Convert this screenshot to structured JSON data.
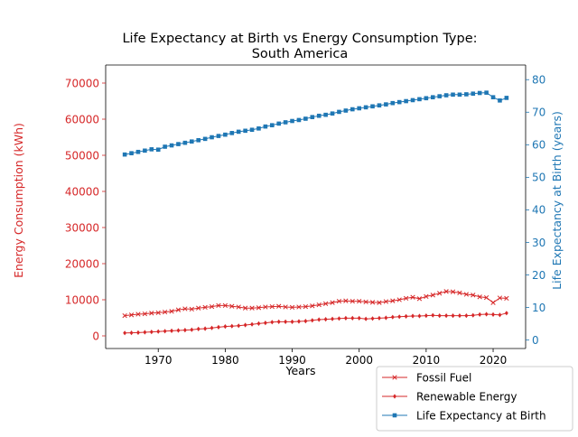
{
  "chart_data": {
    "type": "line",
    "title_line1": "Life Expectancy at Birth vs Energy Consumption Type:",
    "title_line2": "South America",
    "xlabel": "Years",
    "ylabel_left": "Energy Consumption (kWh)",
    "ylabel_right": "Life Expectancy at Birth (years)",
    "xlim": [
      1962.15,
      2024.85
    ],
    "ylim_left": [
      -3500,
      75000
    ],
    "ylim_right": [
      -2.6,
      84.5
    ],
    "x_ticks": [
      1970,
      1980,
      1990,
      2000,
      2010,
      2020
    ],
    "y_ticks_left": [
      0,
      10000,
      20000,
      30000,
      40000,
      50000,
      60000,
      70000
    ],
    "y_ticks_right": [
      0,
      10,
      20,
      30,
      40,
      50,
      60,
      70,
      80
    ],
    "legend_position": "bottom-right outside",
    "grid": false,
    "x": [
      1965,
      1966,
      1967,
      1968,
      1969,
      1970,
      1971,
      1972,
      1973,
      1974,
      1975,
      1976,
      1977,
      1978,
      1979,
      1980,
      1981,
      1982,
      1983,
      1984,
      1985,
      1986,
      1987,
      1988,
      1989,
      1990,
      1991,
      1992,
      1993,
      1994,
      1995,
      1996,
      1997,
      1998,
      1999,
      2000,
      2001,
      2002,
      2003,
      2004,
      2005,
      2006,
      2007,
      2008,
      2009,
      2010,
      2011,
      2012,
      2013,
      2014,
      2015,
      2016,
      2017,
      2018,
      2019,
      2020,
      2021,
      2022
    ],
    "series": [
      {
        "name": "Fossil Fuel",
        "axis": "left",
        "color": "#d62728",
        "marker": "x",
        "values": [
          5600,
          5800,
          6000,
          6100,
          6300,
          6400,
          6600,
          6800,
          7200,
          7500,
          7400,
          7700,
          7900,
          8100,
          8400,
          8400,
          8200,
          8000,
          7700,
          7700,
          7800,
          8000,
          8100,
          8200,
          8000,
          7900,
          8000,
          8100,
          8300,
          8600,
          8900,
          9200,
          9600,
          9700,
          9600,
          9600,
          9400,
          9300,
          9200,
          9500,
          9700,
          10000,
          10400,
          10700,
          10300,
          10900,
          11300,
          11800,
          12300,
          12200,
          11900,
          11500,
          11300,
          10800,
          10600,
          9200,
          10500,
          10400
        ]
      },
      {
        "name": "Renewable Energy",
        "axis": "left",
        "color": "#d62728",
        "marker": "diamond",
        "values": [
          800,
          850,
          900,
          1000,
          1100,
          1200,
          1300,
          1400,
          1500,
          1600,
          1700,
          1900,
          2000,
          2200,
          2400,
          2600,
          2700,
          2800,
          3000,
          3200,
          3400,
          3600,
          3800,
          3900,
          3900,
          3900,
          4000,
          4100,
          4300,
          4500,
          4600,
          4700,
          4800,
          4900,
          4900,
          4900,
          4700,
          4800,
          4900,
          5000,
          5200,
          5300,
          5400,
          5500,
          5500,
          5600,
          5700,
          5600,
          5600,
          5600,
          5600,
          5600,
          5700,
          5900,
          6000,
          5900,
          5800,
          6300
        ]
      },
      {
        "name": "Life Expectancy at Birth",
        "axis": "right",
        "color": "#1f77b4",
        "marker": "square",
        "values": [
          57.0,
          57.4,
          57.8,
          58.2,
          58.6,
          58.5,
          59.4,
          59.8,
          60.2,
          60.6,
          61.0,
          61.4,
          61.8,
          62.3,
          62.7,
          63.1,
          63.6,
          64.0,
          64.3,
          64.6,
          65.0,
          65.6,
          66.0,
          66.5,
          66.9,
          67.3,
          67.6,
          68.0,
          68.5,
          68.9,
          69.2,
          69.6,
          70.1,
          70.5,
          70.9,
          71.2,
          71.5,
          71.8,
          72.1,
          72.4,
          72.8,
          73.1,
          73.4,
          73.7,
          74.0,
          74.3,
          74.6,
          74.9,
          75.2,
          75.4,
          75.4,
          75.5,
          75.7,
          75.9,
          76.0,
          74.6,
          73.6,
          74.4
        ]
      }
    ]
  }
}
